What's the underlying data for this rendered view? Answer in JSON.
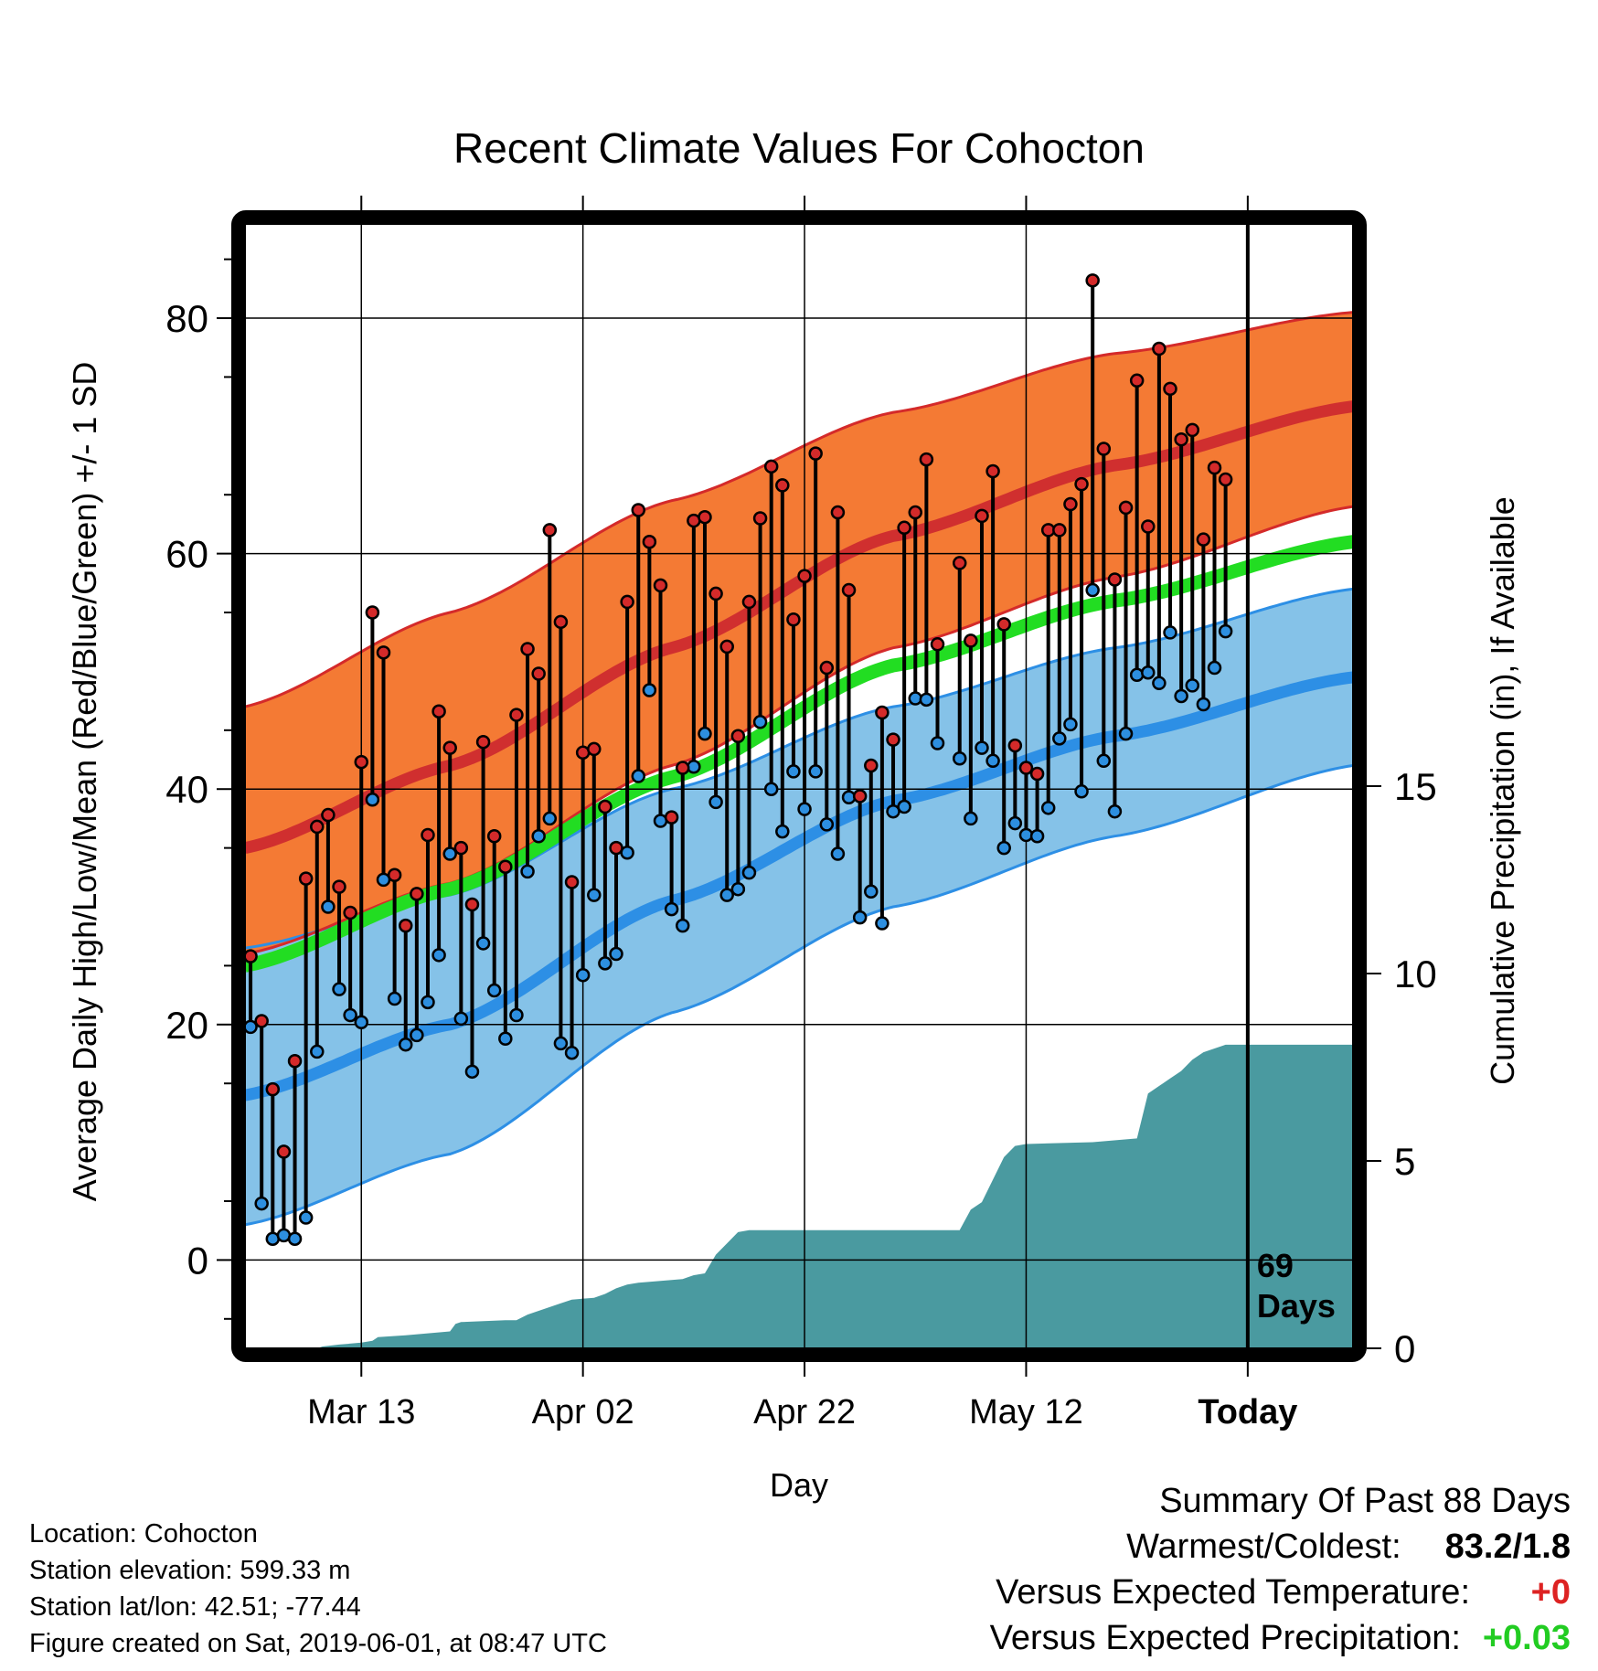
{
  "chart_data": {
    "type": "line",
    "title": "Recent Climate Values For Cohocton",
    "xlabel": "Day",
    "ylabel": "Average Daily High/Low/Mean (Red/Blue/Green) +/- 1 SD",
    "y2label": "Cumulative Precipitation (in), If Available",
    "x_ticks": [
      {
        "day": 12,
        "label": "Mar 13"
      },
      {
        "day": 32,
        "label": "Apr 02"
      },
      {
        "day": 52,
        "label": "Apr 22"
      },
      {
        "day": 72,
        "label": "May 12"
      },
      {
        "day": 92,
        "label": "Today"
      }
    ],
    "ylim": [
      -7.5,
      88
    ],
    "y_ticks": [
      0,
      20,
      40,
      60,
      80
    ],
    "y2lim": [
      0,
      30
    ],
    "y2_ticks": [
      0,
      5,
      10,
      15
    ],
    "xlim": [
      1.5,
      101.5
    ],
    "grid": true,
    "today_day": 92,
    "today_annotation": [
      "69",
      "Days"
    ],
    "normals": {
      "high_mean": [
        [
          1.5,
          35.0
        ],
        [
          20,
          42.0
        ],
        [
          40,
          52.0
        ],
        [
          60,
          61.5
        ],
        [
          80,
          67.5
        ],
        [
          101.5,
          72.5
        ]
      ],
      "high_upper": [
        [
          1.5,
          47.0
        ],
        [
          20,
          55.0
        ],
        [
          40,
          64.5
        ],
        [
          60,
          72.0
        ],
        [
          80,
          77.0
        ],
        [
          101.5,
          80.5
        ]
      ],
      "high_lower": [
        [
          1.5,
          26.0
        ],
        [
          20,
          32.0
        ],
        [
          40,
          42.0
        ],
        [
          60,
          52.0
        ],
        [
          80,
          58.0
        ],
        [
          101.5,
          64.0
        ]
      ],
      "mean": [
        [
          1.5,
          25.0
        ],
        [
          20,
          31.5
        ],
        [
          40,
          41.0
        ],
        [
          60,
          50.5
        ],
        [
          80,
          56.0
        ],
        [
          101.5,
          61.0
        ]
      ],
      "low_mean": [
        [
          1.5,
          14.0
        ],
        [
          20,
          20.0
        ],
        [
          40,
          30.5
        ],
        [
          60,
          39.0
        ],
        [
          80,
          44.5
        ],
        [
          101.5,
          49.5
        ]
      ],
      "low_upper": [
        [
          1.5,
          26.5
        ],
        [
          20,
          31.0
        ],
        [
          40,
          40.0
        ],
        [
          60,
          47.0
        ],
        [
          80,
          52.0
        ],
        [
          101.5,
          57.0
        ]
      ],
      "low_lower": [
        [
          1.5,
          3.0
        ],
        [
          20,
          9.0
        ],
        [
          40,
          21.0
        ],
        [
          60,
          30.0
        ],
        [
          80,
          36.0
        ],
        [
          101.5,
          42.0
        ]
      ]
    },
    "series": [
      {
        "name": "High",
        "color": "#d42a2a",
        "values": [
          [
            2,
            25.8
          ],
          [
            3,
            20.3
          ],
          [
            4,
            14.5
          ],
          [
            5,
            9.2
          ],
          [
            6,
            16.9
          ],
          [
            7,
            32.4
          ],
          [
            8,
            36.8
          ],
          [
            9,
            37.8
          ],
          [
            10,
            31.7
          ],
          [
            11,
            29.5
          ],
          [
            12,
            42.3
          ],
          [
            13,
            55.0
          ],
          [
            14,
            51.6
          ],
          [
            15,
            32.7
          ],
          [
            16,
            28.4
          ],
          [
            17,
            31.1
          ],
          [
            18,
            36.1
          ],
          [
            19,
            46.6
          ],
          [
            20,
            43.5
          ],
          [
            21,
            35.0
          ],
          [
            22,
            30.2
          ],
          [
            23,
            44.0
          ],
          [
            24,
            36.0
          ],
          [
            25,
            33.4
          ],
          [
            26,
            46.3
          ],
          [
            27,
            51.9
          ],
          [
            28,
            49.8
          ],
          [
            29,
            62.0
          ],
          [
            30,
            54.2
          ],
          [
            31,
            32.1
          ],
          [
            32,
            43.1
          ],
          [
            33,
            43.4
          ],
          [
            34,
            38.5
          ],
          [
            35,
            35.0
          ],
          [
            36,
            55.9
          ],
          [
            37,
            63.7
          ],
          [
            38,
            61.0
          ],
          [
            39,
            57.3
          ],
          [
            40,
            37.6
          ],
          [
            41,
            41.8
          ],
          [
            42,
            62.8
          ],
          [
            43,
            63.1
          ],
          [
            44,
            56.6
          ],
          [
            45,
            52.1
          ],
          [
            46,
            44.5
          ],
          [
            47,
            55.9
          ],
          [
            48,
            63.0
          ],
          [
            49,
            67.4
          ],
          [
            50,
            65.8
          ],
          [
            51,
            54.4
          ],
          [
            52,
            58.1
          ],
          [
            53,
            68.5
          ],
          [
            54,
            50.3
          ],
          [
            55,
            63.5
          ],
          [
            56,
            56.9
          ],
          [
            57,
            39.4
          ],
          [
            58,
            42.0
          ],
          [
            59,
            46.5
          ],
          [
            60,
            44.2
          ],
          [
            61,
            62.2
          ],
          [
            62,
            63.5
          ],
          [
            63,
            68.0
          ],
          [
            64,
            52.3
          ],
          [
            66,
            59.2
          ],
          [
            67,
            52.6
          ],
          [
            68,
            63.2
          ],
          [
            69,
            67.0
          ],
          [
            70,
            54.0
          ],
          [
            71,
            43.7
          ],
          [
            72,
            41.8
          ],
          [
            73,
            41.3
          ],
          [
            74,
            62.0
          ],
          [
            75,
            62.0
          ],
          [
            76,
            64.2
          ],
          [
            77,
            65.9
          ],
          [
            78,
            83.2
          ],
          [
            79,
            68.9
          ],
          [
            80,
            57.8
          ],
          [
            81,
            63.9
          ],
          [
            82,
            74.7
          ],
          [
            83,
            62.3
          ],
          [
            84,
            77.4
          ],
          [
            85,
            74.0
          ],
          [
            86,
            69.7
          ],
          [
            87,
            70.5
          ],
          [
            88,
            61.2
          ],
          [
            89,
            67.3
          ],
          [
            90,
            66.3
          ]
        ]
      },
      {
        "name": "Low",
        "color": "#2d8fe0",
        "values": [
          [
            2,
            19.8
          ],
          [
            3,
            4.8
          ],
          [
            4,
            1.8
          ],
          [
            5,
            2.1
          ],
          [
            6,
            1.8
          ],
          [
            7,
            3.6
          ],
          [
            8,
            17.7
          ],
          [
            9,
            30.0
          ],
          [
            10,
            23.0
          ],
          [
            11,
            20.8
          ],
          [
            12,
            20.2
          ],
          [
            13,
            39.1
          ],
          [
            14,
            32.3
          ],
          [
            15,
            22.2
          ],
          [
            16,
            18.3
          ],
          [
            17,
            19.1
          ],
          [
            18,
            21.9
          ],
          [
            19,
            25.9
          ],
          [
            20,
            34.5
          ],
          [
            21,
            20.5
          ],
          [
            22,
            16.0
          ],
          [
            23,
            26.9
          ],
          [
            24,
            22.9
          ],
          [
            25,
            18.8
          ],
          [
            26,
            20.8
          ],
          [
            27,
            33.0
          ],
          [
            28,
            36.0
          ],
          [
            29,
            37.5
          ],
          [
            30,
            18.4
          ],
          [
            31,
            17.6
          ],
          [
            32,
            24.2
          ],
          [
            33,
            31.0
          ],
          [
            34,
            25.2
          ],
          [
            35,
            26.0
          ],
          [
            36,
            34.6
          ],
          [
            37,
            41.1
          ],
          [
            38,
            48.4
          ],
          [
            39,
            37.3
          ],
          [
            40,
            29.8
          ],
          [
            41,
            28.4
          ],
          [
            42,
            41.9
          ],
          [
            43,
            44.7
          ],
          [
            44,
            38.9
          ],
          [
            45,
            31.0
          ],
          [
            46,
            31.5
          ],
          [
            47,
            32.9
          ],
          [
            48,
            45.7
          ],
          [
            49,
            40.0
          ],
          [
            50,
            36.4
          ],
          [
            51,
            41.5
          ],
          [
            52,
            38.3
          ],
          [
            53,
            41.5
          ],
          [
            54,
            37.0
          ],
          [
            55,
            34.5
          ],
          [
            56,
            39.3
          ],
          [
            57,
            29.1
          ],
          [
            58,
            31.3
          ],
          [
            59,
            28.6
          ],
          [
            60,
            38.1
          ],
          [
            61,
            38.5
          ],
          [
            62,
            47.7
          ],
          [
            63,
            47.6
          ],
          [
            64,
            43.9
          ],
          [
            66,
            42.6
          ],
          [
            67,
            37.5
          ],
          [
            68,
            43.5
          ],
          [
            69,
            42.4
          ],
          [
            70,
            35.0
          ],
          [
            71,
            37.1
          ],
          [
            72,
            36.1
          ],
          [
            73,
            36.0
          ],
          [
            74,
            38.4
          ],
          [
            75,
            44.3
          ],
          [
            76,
            45.5
          ],
          [
            77,
            39.8
          ],
          [
            78,
            56.9
          ],
          [
            79,
            42.4
          ],
          [
            80,
            38.1
          ],
          [
            81,
            44.7
          ],
          [
            82,
            49.7
          ],
          [
            83,
            49.9
          ],
          [
            84,
            49.0
          ],
          [
            85,
            53.3
          ],
          [
            86,
            47.9
          ],
          [
            87,
            48.8
          ],
          [
            88,
            47.2
          ],
          [
            89,
            50.3
          ],
          [
            90,
            53.4
          ]
        ]
      }
    ],
    "precipitation": [
      [
        1.5,
        0
      ],
      [
        8,
        0
      ],
      [
        8.5,
        0.05
      ],
      [
        10,
        0.1
      ],
      [
        12,
        0.15
      ],
      [
        13,
        0.2
      ],
      [
        13.5,
        0.3
      ],
      [
        16,
        0.35
      ],
      [
        18,
        0.4
      ],
      [
        20,
        0.45
      ],
      [
        20.5,
        0.65
      ],
      [
        21,
        0.7
      ],
      [
        25,
        0.75
      ],
      [
        26,
        0.75
      ],
      [
        27,
        0.9
      ],
      [
        28,
        1.0
      ],
      [
        29,
        1.1
      ],
      [
        30,
        1.2
      ],
      [
        31,
        1.3
      ],
      [
        33,
        1.35
      ],
      [
        34,
        1.45
      ],
      [
        35,
        1.6
      ],
      [
        36,
        1.7
      ],
      [
        37,
        1.75
      ],
      [
        39,
        1.8
      ],
      [
        41,
        1.85
      ],
      [
        42,
        1.95
      ],
      [
        43,
        2.0
      ],
      [
        44,
        2.5
      ],
      [
        45,
        2.8
      ],
      [
        46,
        3.1
      ],
      [
        47,
        3.15
      ],
      [
        66,
        3.15
      ],
      [
        67,
        3.7
      ],
      [
        68,
        3.9
      ],
      [
        69,
        4.5
      ],
      [
        70,
        5.1
      ],
      [
        71,
        5.4
      ],
      [
        72,
        5.45
      ],
      [
        78,
        5.5
      ],
      [
        82,
        5.6
      ],
      [
        83,
        6.8
      ],
      [
        84,
        7.0
      ],
      [
        85,
        7.2
      ],
      [
        86,
        7.4
      ],
      [
        87,
        7.7
      ],
      [
        88,
        7.9
      ],
      [
        89,
        8.0
      ],
      [
        90,
        8.1
      ],
      [
        101.5,
        8.1
      ]
    ]
  },
  "info": {
    "location": "Location: Cohocton",
    "elevation": "Station elevation: 599.33 m",
    "latlon": "Station lat/lon: 42.51; -77.44",
    "created": "Figure created on Sat, 2019-06-01, at 08:47 UTC"
  },
  "summary": {
    "title": "Summary Of Past 88 Days",
    "warmest_label": "Warmest/Coldest:",
    "warmest_value": "83.2/1.8",
    "temp_label": "Versus Expected Temperature:",
    "temp_value": "+0",
    "temp_color": "#dd2222",
    "precip_label": "Versus Expected Precipitation:",
    "precip_value": "+0.03",
    "precip_color": "#22cc22"
  },
  "colors": {
    "high_band": "#f47a34",
    "high_mean": "#d02f2f",
    "high_edge": "#d42a2a",
    "low_band": "#85c2e8",
    "low_mean": "#2d8fe5",
    "low_edge": "#2d8fe5",
    "mean": "#22dd22",
    "precip": "#4a9aa0",
    "high_dot": "#d42a2a",
    "low_dot": "#2d8fe0"
  }
}
